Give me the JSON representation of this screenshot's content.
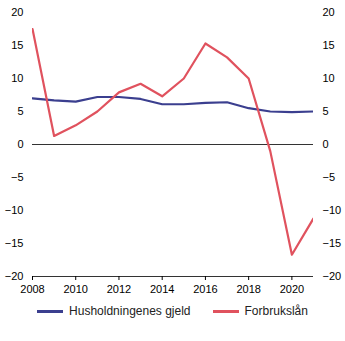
{
  "chart_data": {
    "type": "line",
    "x": [
      2008,
      2009,
      2010,
      2011,
      2012,
      2013,
      2014,
      2015,
      2016,
      2017,
      2018,
      2019,
      2020,
      2021
    ],
    "series": [
      {
        "name": "Husholdningenes gjeld",
        "color": "#3b3f8f",
        "values": [
          7.0,
          6.7,
          6.5,
          7.2,
          7.2,
          6.9,
          6.1,
          6.1,
          6.3,
          6.4,
          5.5,
          5.0,
          4.9,
          5.0
        ]
      },
      {
        "name": "Forbrukslån",
        "color": "#e0525e",
        "values": [
          17.5,
          1.3,
          2.9,
          5.0,
          7.9,
          9.2,
          7.3,
          10.0,
          15.3,
          13.2,
          10.0,
          -1.0,
          -16.7,
          -11.2
        ]
      }
    ],
    "xlim": [
      2008,
      2021
    ],
    "xticks": [
      2008,
      2010,
      2012,
      2014,
      2016,
      2018,
      2020
    ],
    "ylim": [
      -20,
      20
    ],
    "yticks": [
      -20,
      -15,
      -10,
      -5,
      0,
      5,
      10,
      15,
      20
    ],
    "grid": false,
    "legend": "bottom"
  }
}
